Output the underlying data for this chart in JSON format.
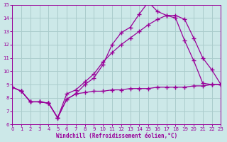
{
  "bg_color": "#cce8e8",
  "line_color": "#990099",
  "grid_color": "#aacccc",
  "xlabel": "Windchill (Refroidissement éolien,°C)",
  "xmin": 0,
  "xmax": 23,
  "ymin": 6,
  "ymax": 15,
  "yticks": [
    6,
    7,
    8,
    9,
    10,
    11,
    12,
    13,
    14,
    15
  ],
  "xticks": [
    0,
    1,
    2,
    3,
    4,
    5,
    6,
    7,
    8,
    9,
    10,
    11,
    12,
    13,
    14,
    15,
    16,
    17,
    18,
    19,
    20,
    21,
    22,
    23
  ],
  "line1_x": [
    0,
    1,
    2,
    3,
    4,
    5,
    6,
    7,
    8,
    9,
    10,
    11,
    12,
    13,
    14,
    15,
    16,
    17,
    18,
    19,
    20,
    21,
    22,
    23
  ],
  "line1_y": [
    8.8,
    8.5,
    7.7,
    7.7,
    7.6,
    6.5,
    7.9,
    8.3,
    9.0,
    9.5,
    10.5,
    12.0,
    12.9,
    13.3,
    14.3,
    15.2,
    14.5,
    14.2,
    14.0,
    12.3,
    10.8,
    9.1,
    9.0,
    9.0
  ],
  "line2_x": [
    0,
    1,
    2,
    3,
    4,
    5,
    6,
    7,
    8,
    9,
    10,
    11,
    12,
    13,
    14,
    15,
    16,
    17,
    18,
    19,
    20,
    21,
    22,
    23
  ],
  "line2_y": [
    8.8,
    8.5,
    7.7,
    7.7,
    7.6,
    6.5,
    8.3,
    8.6,
    9.2,
    9.8,
    10.7,
    11.4,
    12.0,
    12.5,
    13.0,
    13.5,
    13.9,
    14.2,
    14.2,
    13.9,
    12.5,
    11.0,
    10.1,
    9.0
  ],
  "line3_x": [
    0,
    1,
    2,
    3,
    4,
    5,
    6,
    7,
    8,
    9,
    10,
    11,
    12,
    13,
    14,
    15,
    16,
    17,
    18,
    19,
    20,
    21,
    22,
    23
  ],
  "line3_y": [
    8.8,
    8.5,
    7.7,
    7.7,
    7.6,
    6.5,
    7.9,
    8.3,
    8.4,
    8.5,
    8.5,
    8.6,
    8.6,
    8.7,
    8.7,
    8.7,
    8.8,
    8.8,
    8.8,
    8.8,
    8.9,
    8.9,
    9.0,
    9.0
  ]
}
